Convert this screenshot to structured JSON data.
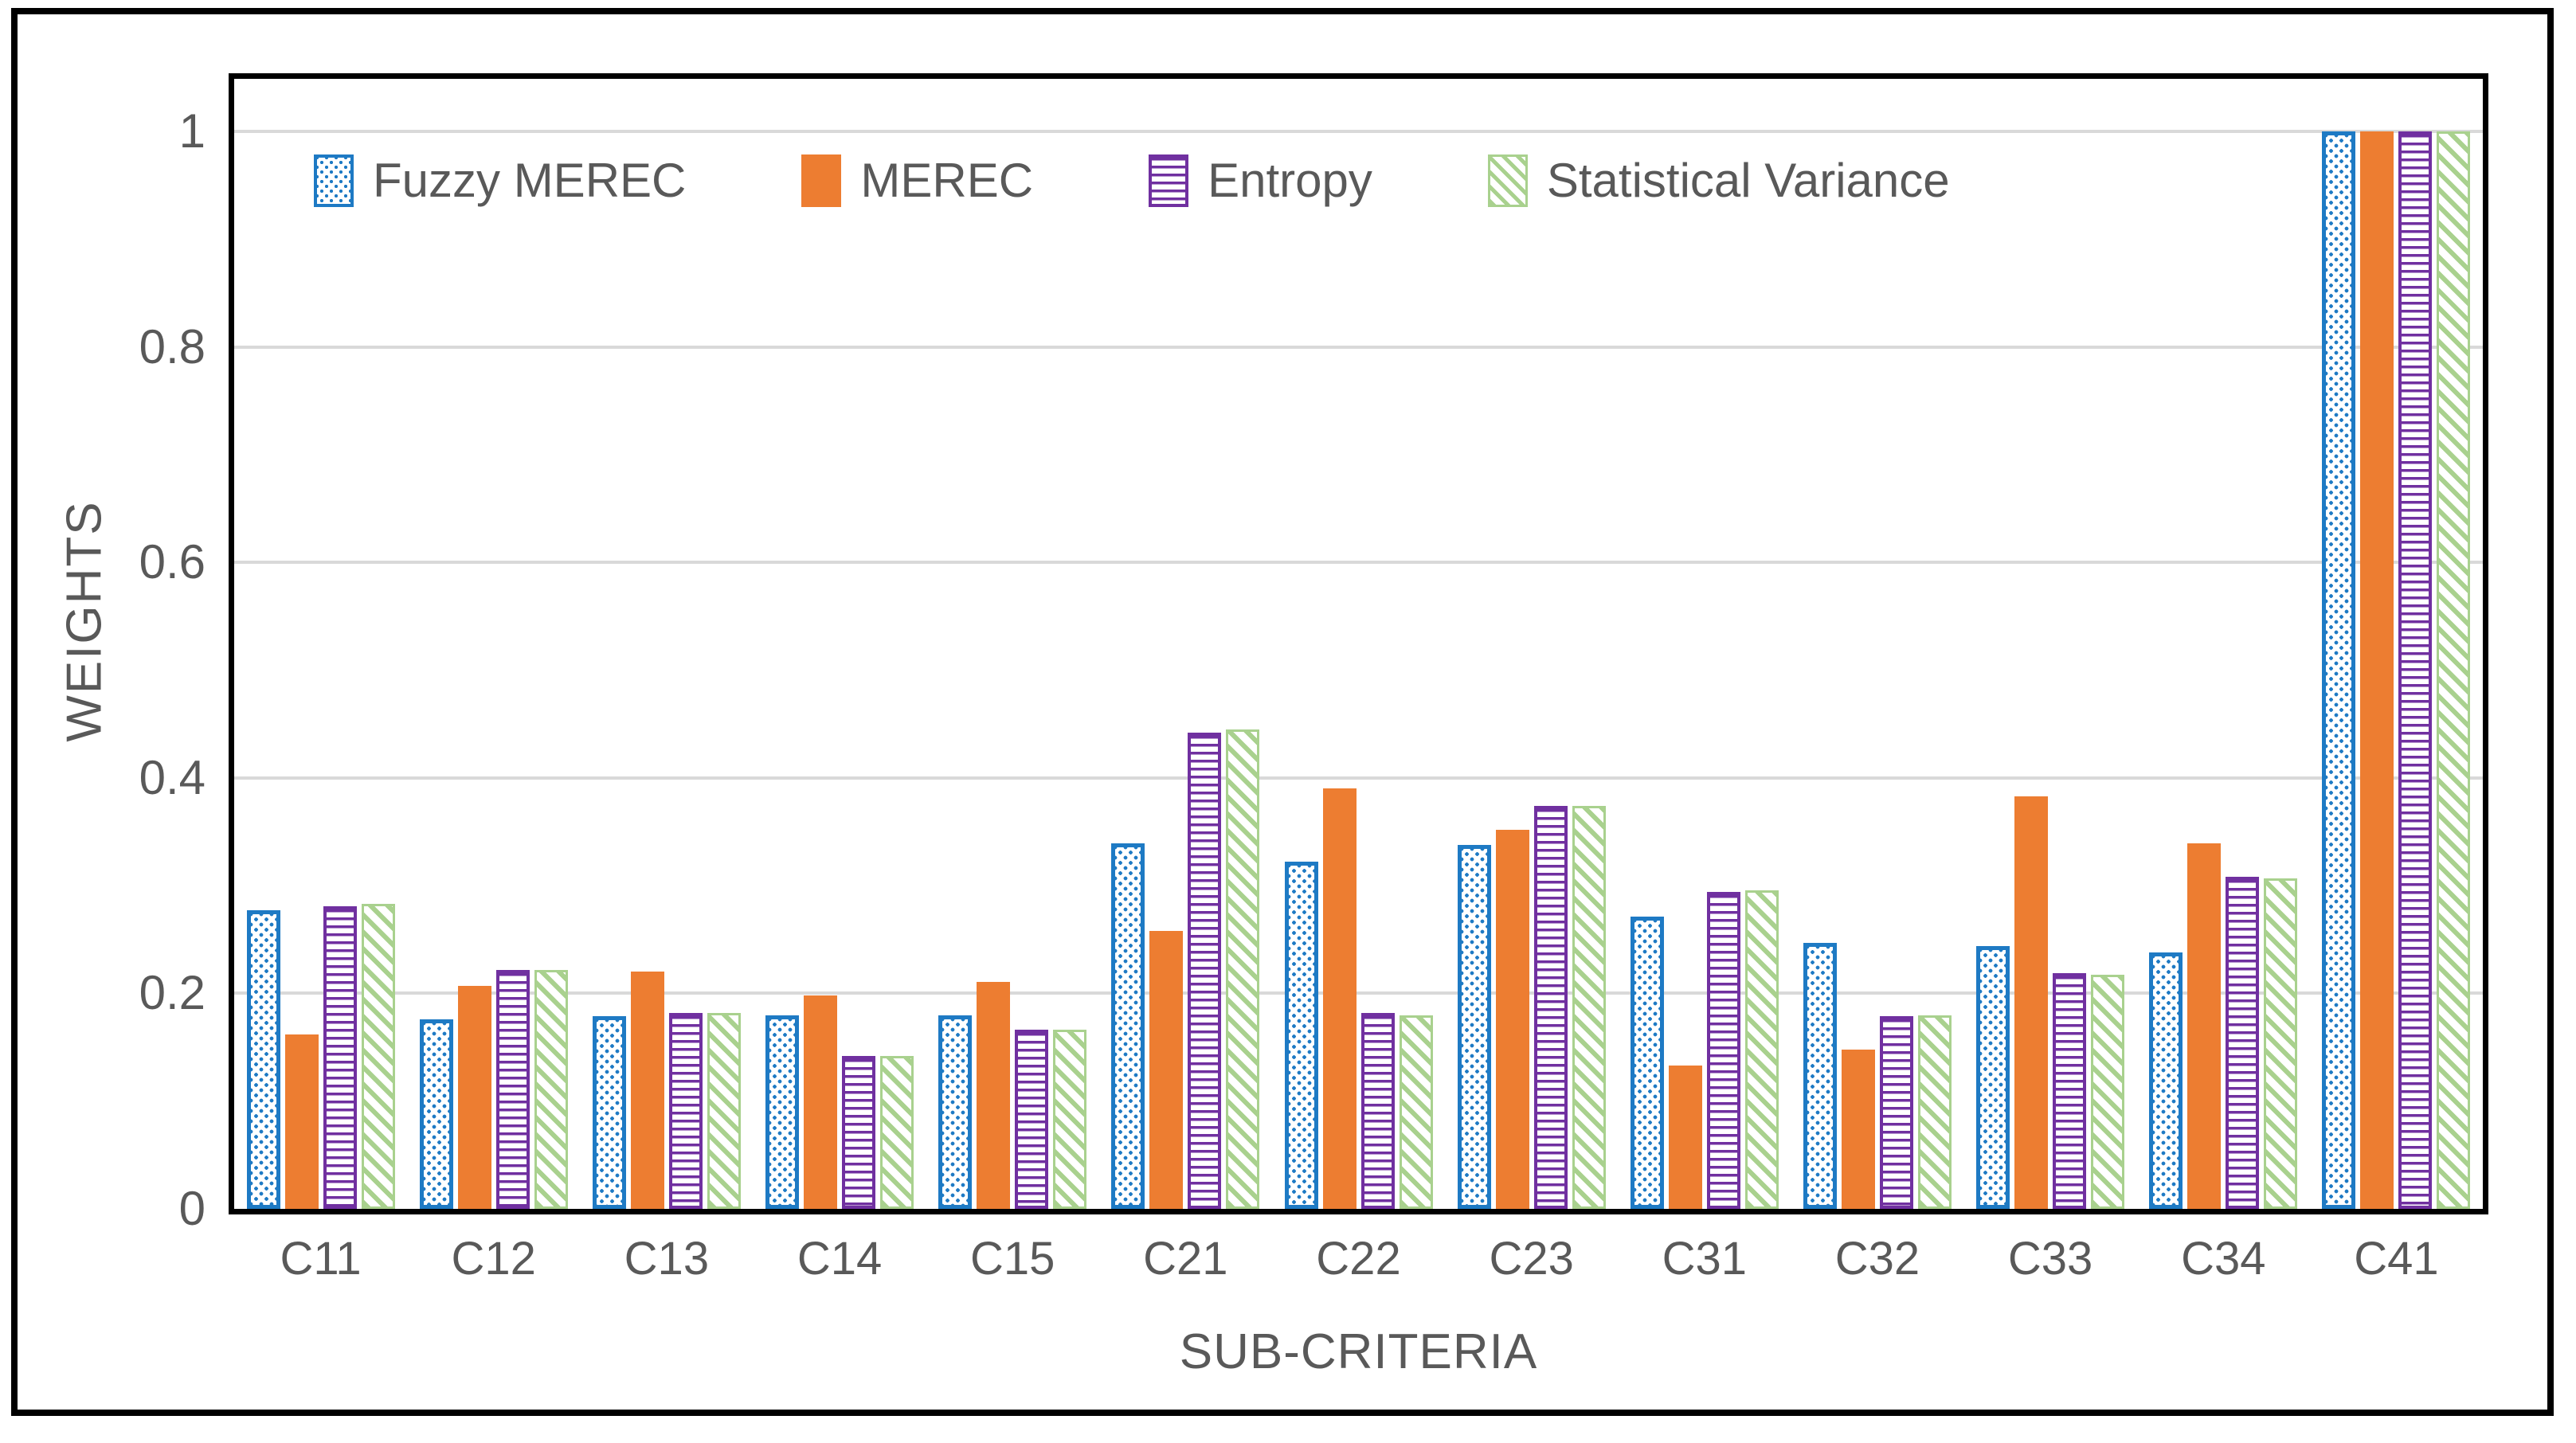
{
  "figure": {
    "background": "#FFFFFF",
    "border_color": "#000000"
  },
  "colors": {
    "fuzzy_merec_blue": "#1E7AC4",
    "merec_orange": "#ED7D31",
    "entropy_purple": "#7030A0",
    "stat_variance_green": "#A9D18E",
    "axis_text_gray": "#595959",
    "gridline_gray": "#D9D9D9"
  },
  "axes": {
    "y_title": "WEIGHTS",
    "x_title": "SUB-CRITERIA",
    "y_ticks": [
      {
        "label": "1",
        "value": 1.0
      },
      {
        "label": "0.8",
        "value": 0.8
      },
      {
        "label": "0.6",
        "value": 0.6
      },
      {
        "label": "0.4",
        "value": 0.4
      },
      {
        "label": "0.2",
        "value": 0.2
      },
      {
        "label": "0",
        "value": 0.0
      }
    ]
  },
  "legend": [
    {
      "label": "Fuzzy MEREC",
      "pattern": "blue-dots",
      "color": "#1E7AC4"
    },
    {
      "label": "MEREC",
      "pattern": "solid",
      "color": "#ED7D31"
    },
    {
      "label": "Entropy",
      "pattern": "horizontal-stripes",
      "color": "#7030A0"
    },
    {
      "label": "Statistical Variance",
      "pattern": "diagonal-stripes",
      "color": "#A9D18E"
    }
  ],
  "chart_data": {
    "type": "bar",
    "title": "",
    "xlabel": "SUB-CRITERIA",
    "ylabel": "WEIGHTS",
    "ylim": [
      0,
      1.05
    ],
    "grid": true,
    "legend_position": "top-left-inside",
    "categories": [
      "C11",
      "C12",
      "C13",
      "C14",
      "C15",
      "C21",
      "C22",
      "C23",
      "C31",
      "C32",
      "C33",
      "C34",
      "C41"
    ],
    "series": [
      {
        "name": "Fuzzy MEREC",
        "values": [
          0.277,
          0.176,
          0.179,
          0.18,
          0.18,
          0.339,
          0.322,
          0.338,
          0.271,
          0.247,
          0.244,
          0.238,
          1.0
        ]
      },
      {
        "name": "MEREC",
        "values": [
          0.162,
          0.207,
          0.22,
          0.198,
          0.211,
          0.258,
          0.39,
          0.352,
          0.133,
          0.148,
          0.383,
          0.339,
          1.0
        ]
      },
      {
        "name": "Entropy",
        "values": [
          0.281,
          0.222,
          0.182,
          0.142,
          0.166,
          0.442,
          0.182,
          0.374,
          0.294,
          0.179,
          0.219,
          0.308,
          1.0
        ]
      },
      {
        "name": "Statistical Variance",
        "values": [
          0.283,
          0.222,
          0.182,
          0.142,
          0.166,
          0.445,
          0.18,
          0.374,
          0.296,
          0.18,
          0.217,
          0.307,
          1.0
        ]
      }
    ]
  }
}
